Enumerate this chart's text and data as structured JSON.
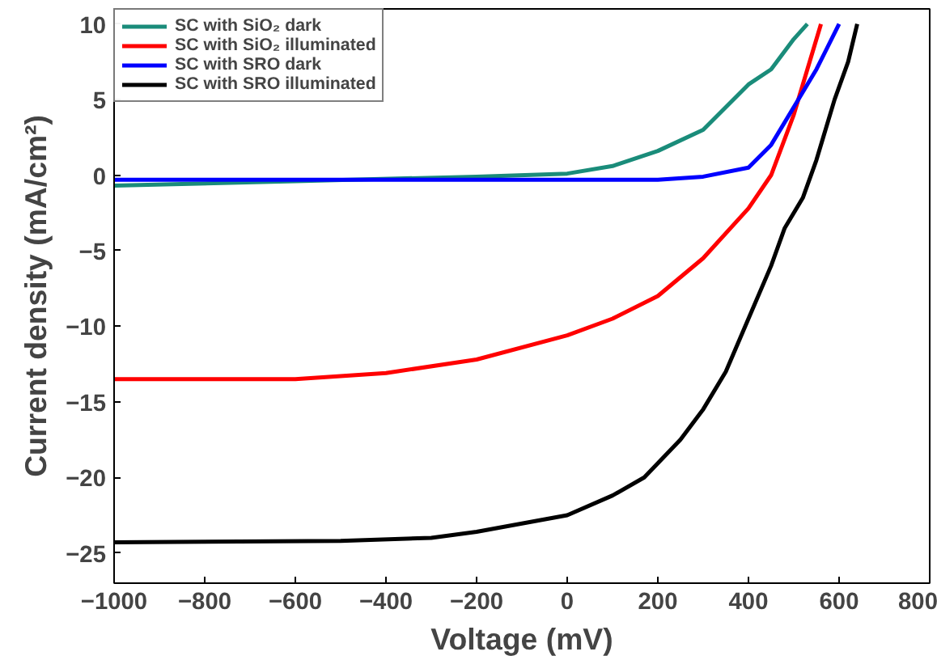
{
  "chart_data": {
    "type": "line",
    "xlabel": "Voltage (mV)",
    "ylabel": "Current density (mA/cm²)",
    "xlim": [
      -1000,
      800
    ],
    "ylim": [
      -27,
      11
    ],
    "xticks": [
      -1000,
      -800,
      -600,
      -400,
      -200,
      0,
      200,
      400,
      600,
      800
    ],
    "yticks": [
      -25,
      -20,
      -15,
      -10,
      -5,
      0,
      5,
      10
    ],
    "grid": false,
    "legend": "top left",
    "marker": "none",
    "line_style": "solid",
    "series": [
      {
        "name": "SC with SiO₂ dark",
        "color": "#1a8c7a",
        "x": [
          -1000,
          -600,
          -200,
          0,
          100,
          200,
          300,
          350,
          400,
          450,
          500,
          530
        ],
        "values": [
          -0.7,
          -0.4,
          -0.1,
          0.1,
          0.6,
          1.6,
          3,
          4.5,
          6,
          7,
          9,
          10
        ]
      },
      {
        "name": "SC with SiO₂ illuminated",
        "color": "#ff0000",
        "x": [
          -1000,
          -600,
          -400,
          -200,
          0,
          100,
          200,
          300,
          400,
          450,
          500,
          530,
          560
        ],
        "values": [
          -13.5,
          -13.5,
          -13.1,
          -12.2,
          -10.6,
          -9.5,
          -8,
          -5.5,
          -2.2,
          0,
          4,
          7,
          10
        ]
      },
      {
        "name": "SC with SRO dark",
        "color": "#0000ff",
        "x": [
          -1000,
          -400,
          0,
          200,
          300,
          400,
          450,
          500,
          550,
          600
        ],
        "values": [
          -0.3,
          -0.3,
          -0.3,
          -0.3,
          -0.1,
          0.5,
          2,
          4.5,
          7,
          10
        ]
      },
      {
        "name": "SC with SRO illuminated",
        "color": "#000000",
        "x": [
          -1000,
          -500,
          -300,
          -200,
          0,
          100,
          170,
          250,
          300,
          350,
          400,
          450,
          480,
          520,
          550,
          590,
          620,
          640
        ],
        "values": [
          -24.3,
          -24.2,
          -24,
          -23.6,
          -22.5,
          -21.2,
          -20,
          -17.5,
          -15.5,
          -13,
          -9.5,
          -6,
          -3.5,
          -1.5,
          1,
          5,
          7.5,
          10
        ]
      }
    ]
  }
}
